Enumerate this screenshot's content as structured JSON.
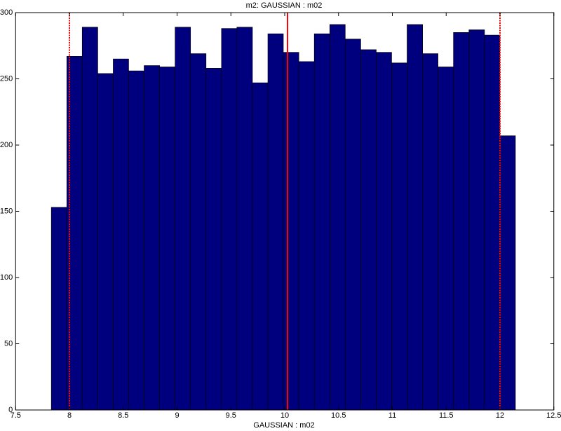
{
  "chart_data": {
    "type": "histogram",
    "title": "m2: GAUSSIAN : m02",
    "xlabel": "GAUSSIAN : m02",
    "bins": [
      7.832,
      7.976,
      8.119,
      8.263,
      8.407,
      8.55,
      8.694,
      8.838,
      8.982,
      9.125,
      9.269,
      9.413,
      9.556,
      9.7,
      9.844,
      9.987,
      10.131,
      10.275,
      10.419,
      10.562,
      10.706,
      10.85,
      10.993,
      11.137,
      11.281,
      11.424,
      11.568,
      11.712,
      11.856,
      11.999,
      12.143
    ],
    "values": [
      153,
      267,
      289,
      254,
      265,
      256,
      260,
      259,
      289,
      269,
      258,
      288,
      289,
      247,
      284,
      270,
      263,
      284,
      291,
      280,
      272,
      270,
      262,
      291,
      269,
      259,
      285,
      287,
      283,
      207
    ],
    "color": "#00007f",
    "edgecolor": "#000000",
    "xlim": [
      7.5,
      12.5
    ],
    "xticks": [
      7.5,
      8,
      8.5,
      9,
      9.5,
      10,
      10.5,
      11,
      11.5,
      12,
      12.5
    ],
    "ylim": [
      0,
      300
    ],
    "yticks": [
      0,
      50,
      100,
      150,
      200,
      250,
      300
    ],
    "vlines": [
      {
        "x": 8,
        "style": "dotted",
        "color": "#ff0000"
      },
      {
        "x": 10.026,
        "style": "solid",
        "color": "#ff0000"
      },
      {
        "x": 12,
        "style": "dotted",
        "color": "#ff0000"
      }
    ]
  }
}
